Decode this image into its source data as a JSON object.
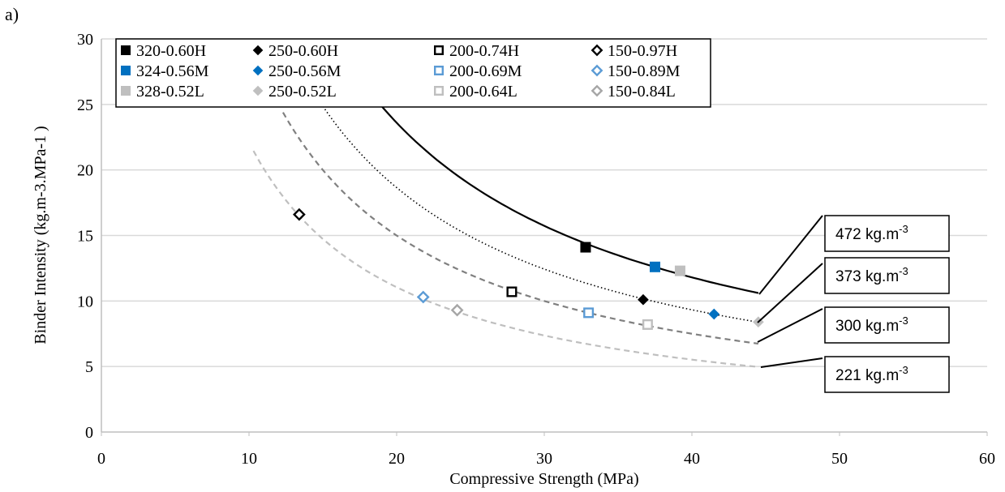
{
  "panel_label": "a)",
  "chart_data": {
    "type": "scatter",
    "xlabel": "Compressive Strength (MPa)",
    "ylabel": "Binder Intensity (kg.m-3.MPa-1 )",
    "xlim": [
      0,
      60
    ],
    "ylim": [
      0,
      30
    ],
    "xticks": [
      "0",
      "10",
      "20",
      "30",
      "40",
      "50",
      "60"
    ],
    "yticks": [
      "0",
      "5",
      "10",
      "15",
      "20",
      "25",
      "30"
    ],
    "grid": "horizontal",
    "legend_position": "top-left",
    "colors": {
      "H": "#000000",
      "M": "#0070C0",
      "L": "#BFBFBF",
      "L_dark": "#A6A6A6",
      "grid": "#D9D9D9"
    },
    "series": [
      {
        "name": "320-0.60H",
        "marker": "square-filled",
        "color": "#000000",
        "x": 32.8,
        "y": 14.1
      },
      {
        "name": "250-0.60H",
        "marker": "diamond-filled",
        "color": "#000000",
        "x": 36.7,
        "y": 10.1
      },
      {
        "name": "200-0.74H",
        "marker": "square-open",
        "color": "#000000",
        "x": 27.8,
        "y": 10.7
      },
      {
        "name": "150-0.97H",
        "marker": "diamond-open",
        "color": "#000000",
        "x": 13.4,
        "y": 16.6
      },
      {
        "name": "324-0.56M",
        "marker": "square-filled",
        "color": "#0070C0",
        "x": 37.5,
        "y": 12.6
      },
      {
        "name": "250-0.56M",
        "marker": "diamond-filled",
        "color": "#0070C0",
        "x": 41.5,
        "y": 9.0
      },
      {
        "name": "200-0.69M",
        "marker": "square-open",
        "color": "#5B9BD5",
        "x": 33.0,
        "y": 9.1
      },
      {
        "name": "150-0.89M",
        "marker": "diamond-open",
        "color": "#5B9BD5",
        "x": 21.8,
        "y": 10.3
      },
      {
        "name": "328-0.52L",
        "marker": "square-filled",
        "color": "#BFBFBF",
        "x": 39.2,
        "y": 12.3
      },
      {
        "name": "250-0.52L",
        "marker": "diamond-filled",
        "color": "#BFBFBF",
        "x": 44.5,
        "y": 8.4
      },
      {
        "name": "200-0.64L",
        "marker": "square-open",
        "color": "#BFBFBF",
        "x": 37.0,
        "y": 8.2
      },
      {
        "name": "150-0.84L",
        "marker": "diamond-open",
        "color": "#A6A6A6",
        "x": 24.1,
        "y": 9.3
      }
    ],
    "iso_lines": [
      {
        "label": "472 kg.m",
        "sup": "-3",
        "k": 472,
        "x_start": 15.5,
        "x_end": 44.5,
        "style": "solid",
        "color": "#000000"
      },
      {
        "label": "373 kg.m",
        "sup": "-3",
        "k": 373,
        "x_start": 15.0,
        "x_end": 44.5,
        "style": "dotted",
        "color": "#000000"
      },
      {
        "label": "300 kg.m",
        "sup": "-3",
        "k": 300,
        "x_start": 12.3,
        "x_end": 44.5,
        "style": "dashed",
        "color": "#808080"
      },
      {
        "label": "221 kg.m",
        "sup": "-3",
        "k": 221,
        "x_start": 10.3,
        "x_end": 44.5,
        "style": "dashed",
        "color": "#BFBFBF"
      }
    ]
  }
}
